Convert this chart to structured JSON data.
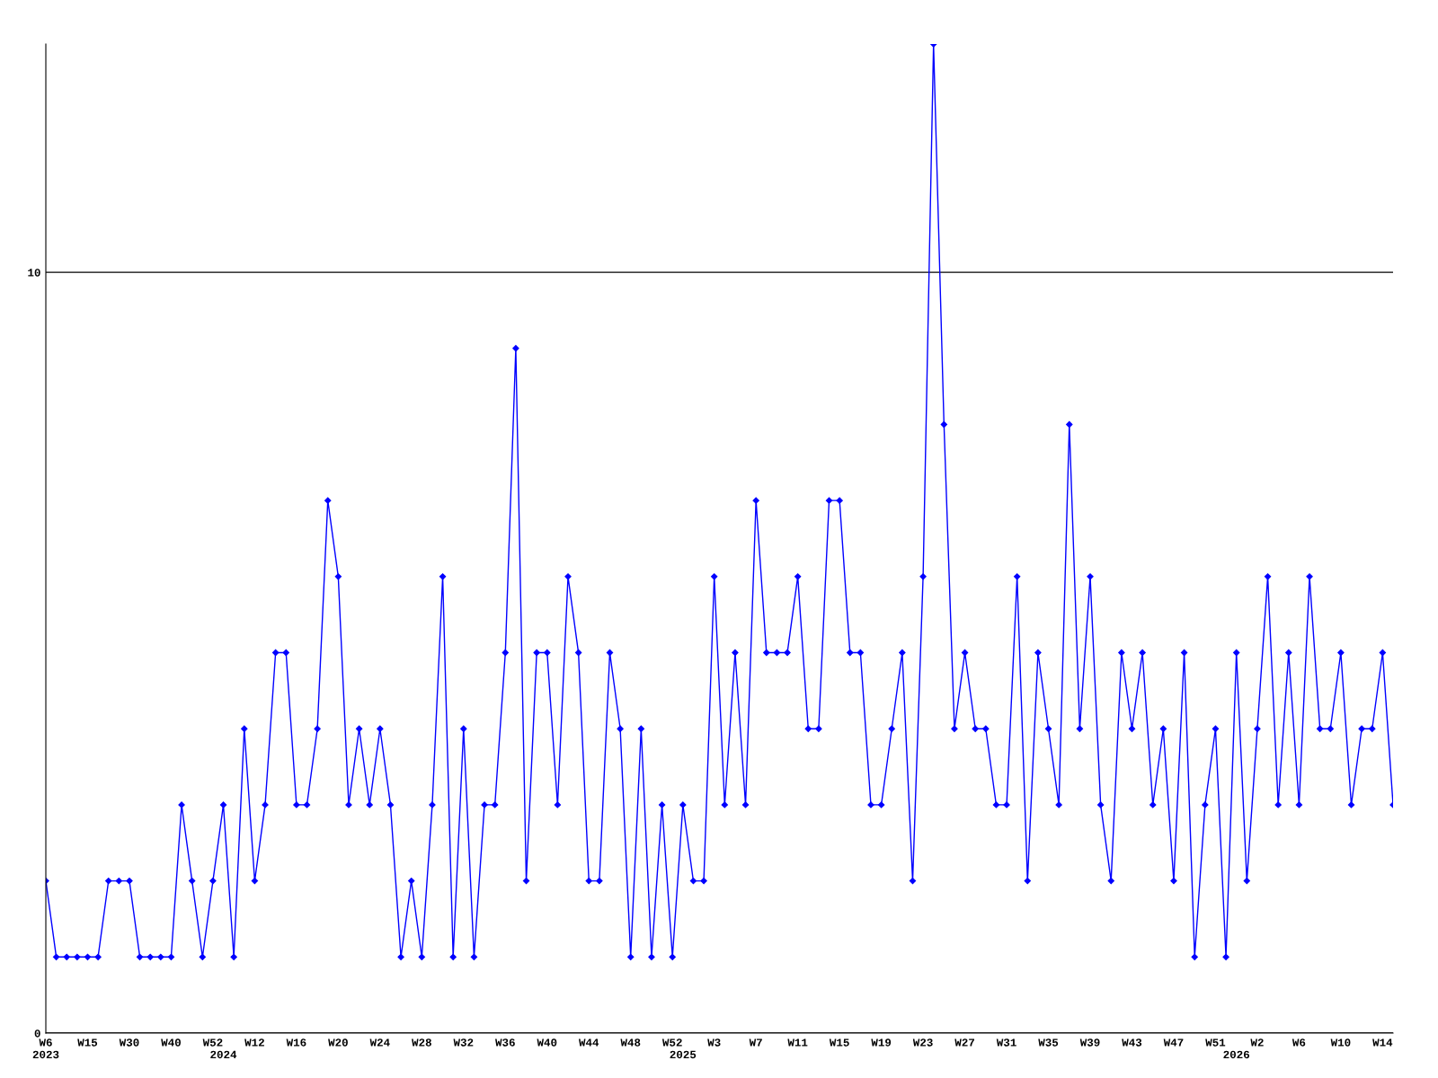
{
  "chart_data": {
    "type": "line",
    "categories": [
      "W6\n2023",
      null,
      null,
      null,
      "W15",
      null,
      null,
      null,
      "W30",
      null,
      null,
      null,
      "W40",
      null,
      null,
      null,
      "W52",
      "\n2024",
      null,
      null,
      "W12",
      null,
      null,
      null,
      "W16",
      null,
      null,
      null,
      "W20",
      null,
      null,
      null,
      "W24",
      null,
      null,
      null,
      "W28",
      null,
      null,
      null,
      "W32",
      null,
      null,
      null,
      "W36",
      null,
      null,
      null,
      "W40",
      null,
      null,
      null,
      "W44",
      null,
      null,
      null,
      "W48",
      null,
      null,
      null,
      "W52",
      "\n2025",
      null,
      null,
      "W3",
      null,
      null,
      null,
      "W7",
      null,
      null,
      null,
      "W11",
      null,
      null,
      null,
      "W15",
      null,
      null,
      null,
      "W19",
      null,
      null,
      null,
      "W23",
      null,
      null,
      null,
      "W27",
      null,
      null,
      null,
      "W31",
      null,
      null,
      null,
      "W35",
      null,
      null,
      null,
      "W39",
      null,
      null,
      null,
      "W43",
      null,
      null,
      null,
      "W47",
      null,
      null,
      null,
      "W51",
      null,
      "\n2026",
      null,
      "W2",
      null,
      null,
      null,
      "W6",
      null,
      null,
      null,
      "W10",
      null,
      null,
      null,
      "W14",
      null
    ],
    "series": [
      {
        "color": "#0000ff",
        "values": [
          2,
          1,
          1,
          1,
          1,
          1,
          2,
          2,
          2,
          1,
          1,
          1,
          1,
          3,
          2,
          1,
          2,
          3,
          1,
          4,
          2,
          3,
          5,
          5,
          3,
          3,
          4,
          7,
          6,
          3,
          4,
          3,
          4,
          3,
          1,
          2,
          1,
          3,
          6,
          1,
          4,
          1,
          3,
          3,
          5,
          9,
          2,
          5,
          5,
          3,
          6,
          5,
          2,
          2,
          5,
          4,
          1,
          4,
          1,
          3,
          1,
          3,
          2,
          2,
          6,
          3,
          5,
          3,
          7,
          5,
          5,
          5,
          6,
          4,
          4,
          7,
          7,
          5,
          5,
          3,
          3,
          4,
          5,
          2,
          6,
          13,
          8,
          4,
          5,
          4,
          4,
          3,
          3,
          6,
          2,
          5,
          4,
          3,
          8,
          4,
          6,
          3,
          2,
          5,
          4,
          5,
          3,
          4,
          2,
          5,
          1,
          3,
          4,
          1,
          5,
          2,
          4,
          6,
          3,
          5,
          3,
          6,
          4,
          4,
          5,
          3,
          4,
          4,
          5,
          3
        ]
      }
    ],
    "ylim": [
      0,
      13
    ],
    "yticks": [
      0,
      10
    ],
    "grid": "y",
    "marker": "diamond",
    "line_style": "solid"
  }
}
